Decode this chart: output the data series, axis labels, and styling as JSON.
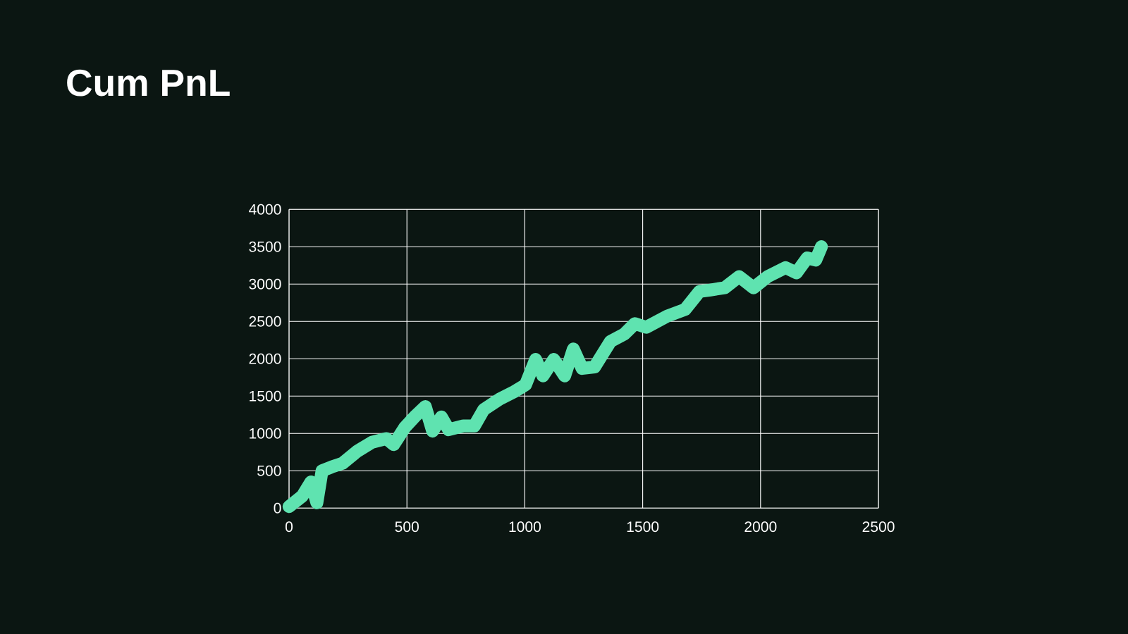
{
  "chart_data": {
    "type": "line",
    "title": "Cum PnL",
    "x": [
      0,
      56,
      93,
      118,
      140,
      180,
      227,
      289,
      351,
      413,
      444,
      491,
      538,
      578,
      609,
      646,
      677,
      739,
      786,
      826,
      894,
      956,
      1003,
      1046,
      1077,
      1123,
      1169,
      1206,
      1243,
      1296,
      1363,
      1422,
      1467,
      1515,
      1604,
      1680,
      1741,
      1787,
      1848,
      1909,
      1970,
      2030,
      2106,
      2152,
      2198,
      2234,
      2258
    ],
    "values": [
      20,
      160,
      350,
      70,
      500,
      550,
      600,
      760,
      880,
      930,
      850,
      1080,
      1240,
      1360,
      1030,
      1220,
      1050,
      1100,
      1100,
      1320,
      1460,
      1560,
      1650,
      1990,
      1770,
      1990,
      1770,
      2130,
      1870,
      1890,
      2230,
      2330,
      2470,
      2420,
      2570,
      2660,
      2900,
      2920,
      2950,
      3100,
      2950,
      3100,
      3220,
      3150,
      3350,
      3320,
      3500
    ],
    "color": "#5fe3b0",
    "xlim": [
      0,
      2500
    ],
    "xticks": [
      0,
      500,
      1000,
      1500,
      2000,
      2500
    ],
    "ylim": [
      0,
      4000
    ],
    "yticks": [
      0,
      500,
      1000,
      1500,
      2000,
      2500,
      3000,
      3500,
      4000
    ],
    "grid": true,
    "marker": "none"
  }
}
